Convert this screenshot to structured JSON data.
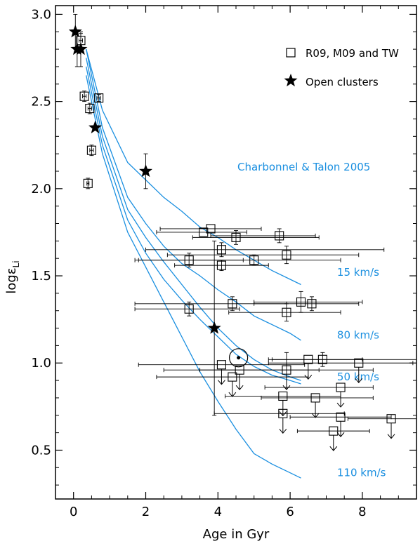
{
  "chart_data": {
    "type": "scatter",
    "xlabel": "Age in Gyr",
    "ylabel_main": "logε",
    "ylabel_sub": "Li",
    "xlim": [
      -0.5,
      9.5
    ],
    "ylim": [
      0.22,
      3.05
    ],
    "x_ticks": [
      0,
      2,
      4,
      6,
      8
    ],
    "x_tick_labels": [
      "0",
      "2",
      "4",
      "6",
      "8"
    ],
    "y_ticks": [
      0.5,
      1.0,
      1.5,
      2.0,
      2.5,
      3.0
    ],
    "y_tick_labels": [
      "0.5",
      "1.0",
      "1.5",
      "2.0",
      "2.5",
      "3.0"
    ],
    "legend": [
      {
        "marker": "square",
        "label": "R09, M09 and TW"
      },
      {
        "marker": "star",
        "label": "Open clusters"
      }
    ],
    "model_title": "Charbonnel & Talon 2005",
    "model_color": "#1a8fe0",
    "sun": {
      "x": 4.57,
      "y": 1.03
    },
    "open_clusters": [
      {
        "x": 0.05,
        "y": 2.9,
        "yerr": 0.1
      },
      {
        "x": 0.1,
        "y": 2.8,
        "yerr": 0.1
      },
      {
        "x": 0.2,
        "y": 2.8,
        "yerr": 0.1
      },
      {
        "x": 0.6,
        "y": 2.35
      },
      {
        "x": 2.0,
        "y": 2.1,
        "yerr": 0.1
      },
      {
        "x": 3.9,
        "y": 1.2,
        "yerr": 0.5
      }
    ],
    "stars": [
      {
        "x": 0.2,
        "y": 2.85,
        "xerr": 0.05,
        "yerr": 0.04
      },
      {
        "x": 0.3,
        "y": 2.53,
        "xerr": 0.05,
        "yerr": 0.03
      },
      {
        "x": 0.45,
        "y": 2.46,
        "xerr": 0.05,
        "yerr": 0.03
      },
      {
        "x": 0.7,
        "y": 2.52,
        "xerr": 0.05,
        "yerr": 0.02
      },
      {
        "x": 0.5,
        "y": 2.22,
        "xerr": 0.05,
        "yerr": 0.03
      },
      {
        "x": 0.4,
        "y": 2.03,
        "xerr": 0.03,
        "yerr": 0.03
      },
      {
        "x": 3.8,
        "y": 1.77,
        "xerr_lo": 1.4,
        "xerr_hi": 1.4
      },
      {
        "x": 3.6,
        "y": 1.75,
        "xerr_lo": 1.3,
        "xerr_hi": 1.2
      },
      {
        "x": 4.5,
        "y": 1.72,
        "xerr_lo": 1.2,
        "xerr_hi": 2.3,
        "yerr": 0.04
      },
      {
        "x": 5.7,
        "y": 1.73,
        "xerr_lo": 1.9,
        "xerr_hi": 1.0,
        "yerr": 0.04
      },
      {
        "x": 4.1,
        "y": 1.65,
        "xerr_lo": 2.1,
        "xerr_hi": 4.5,
        "yerr": 0.04
      },
      {
        "x": 3.2,
        "y": 1.59,
        "xerr_lo": 1.5,
        "xerr_hi": 1.5,
        "yerr": 0.04
      },
      {
        "x": 5.0,
        "y": 1.59,
        "xerr_lo": 3.2,
        "xerr_hi": 2.4,
        "yerr": 0.03
      },
      {
        "x": 5.9,
        "y": 1.62,
        "xerr_lo": 3.3,
        "xerr_hi": 2.0,
        "yerr": 0.05
      },
      {
        "x": 4.1,
        "y": 1.56,
        "xerr_lo": 1.3,
        "xerr_hi": 1.3,
        "yerr": 0.03
      },
      {
        "x": 3.2,
        "y": 1.31,
        "xerr_lo": 1.5,
        "xerr_hi": 1.4,
        "yerr": 0.04
      },
      {
        "x": 4.4,
        "y": 1.34,
        "xerr_lo": 2.7,
        "xerr_hi": 1.5,
        "yerr": 0.04
      },
      {
        "x": 6.3,
        "y": 1.35,
        "xerr_lo": 1.3,
        "xerr_hi": 1.7,
        "yerr": 0.06
      },
      {
        "x": 6.6,
        "y": 1.34,
        "xerr_lo": 1.6,
        "xerr_hi": 1.3,
        "yerr": 0.04
      },
      {
        "x": 5.9,
        "y": 1.29,
        "xerr_lo": 1.6,
        "xerr_hi": 1.5,
        "yerr": 0.05
      },
      {
        "x": 4.1,
        "y": 0.99,
        "xerr_lo": 2.3,
        "xerr_hi": 2.3,
        "upper_limit": true
      },
      {
        "x": 4.4,
        "y": 0.92,
        "xerr_lo": 2.1,
        "xerr_hi": 2.1,
        "upper_limit": true
      },
      {
        "x": 4.6,
        "y": 0.96,
        "xerr_lo": 2.1,
        "xerr_hi": 2.2,
        "upper_limit": true
      },
      {
        "x": 5.9,
        "y": 0.96,
        "xerr_lo": 2.4,
        "xerr_hi": 2.4,
        "yerr": 0.1,
        "upper_limit": true
      },
      {
        "x": 6.5,
        "y": 1.02,
        "xerr_lo": 1.0,
        "xerr_hi": 1.5,
        "upper_limit": true
      },
      {
        "x": 6.9,
        "y": 1.02,
        "xerr_lo": 1.5,
        "xerr_hi": 2.6,
        "yerr": 0.04
      },
      {
        "x": 7.9,
        "y": 1.0,
        "xerr_lo": 2.5,
        "xerr_hi": 1.5,
        "upper_limit": true
      },
      {
        "x": 7.4,
        "y": 0.86,
        "xerr_lo": 2.1,
        "xerr_hi": 0.9,
        "upper_limit": true
      },
      {
        "x": 5.8,
        "y": 0.81,
        "xerr_lo": 1.6,
        "xerr_hi": 1.6,
        "upper_limit": true
      },
      {
        "x": 6.7,
        "y": 0.8,
        "xerr_lo": 1.5,
        "xerr_hi": 1.6,
        "upper_limit": true
      },
      {
        "x": 5.8,
        "y": 0.71,
        "xerr_lo": 1.9,
        "xerr_hi": 1.7,
        "upper_limit": true
      },
      {
        "x": 7.4,
        "y": 0.69,
        "xerr_lo": 1.4,
        "xerr_hi": 1.4,
        "upper_limit": true
      },
      {
        "x": 7.2,
        "y": 0.61,
        "xerr_lo": 1.0,
        "xerr_hi": 1.0,
        "upper_limit": true
      },
      {
        "x": 8.8,
        "y": 0.68,
        "xerr_lo": 1.2,
        "xerr_hi": 0.7,
        "upper_limit": true
      }
    ],
    "models": [
      {
        "label": "15 km/s",
        "label_pos": [
          7.3,
          1.5
        ],
        "points": [
          [
            0.35,
            2.8
          ],
          [
            0.8,
            2.45
          ],
          [
            1.5,
            2.15
          ],
          [
            2.0,
            2.05
          ],
          [
            2.5,
            1.95
          ],
          [
            3.0,
            1.87
          ],
          [
            3.5,
            1.78
          ],
          [
            4.0,
            1.72
          ],
          [
            4.5,
            1.65
          ],
          [
            5.0,
            1.59
          ],
          [
            5.5,
            1.53
          ],
          [
            6.0,
            1.48
          ],
          [
            6.3,
            1.45
          ]
        ]
      },
      {
        "label": "80 km/s",
        "label_pos": [
          7.3,
          1.14
        ],
        "points": [
          [
            0.35,
            2.8
          ],
          [
            0.8,
            2.35
          ],
          [
            1.5,
            1.95
          ],
          [
            2.0,
            1.8
          ],
          [
            2.5,
            1.67
          ],
          [
            3.0,
            1.57
          ],
          [
            3.5,
            1.5
          ],
          [
            4.0,
            1.42
          ],
          [
            4.5,
            1.35
          ],
          [
            5.0,
            1.27
          ],
          [
            5.5,
            1.22
          ],
          [
            6.0,
            1.17
          ],
          [
            6.3,
            1.13
          ]
        ]
      },
      {
        "label": "50 km/s",
        "label_pos": [
          7.3,
          0.9
        ],
        "points": [
          [
            0.35,
            2.75
          ],
          [
            0.8,
            2.3
          ],
          [
            1.5,
            1.88
          ],
          [
            2.0,
            1.72
          ],
          [
            2.5,
            1.58
          ],
          [
            3.0,
            1.45
          ],
          [
            3.5,
            1.32
          ],
          [
            4.0,
            1.2
          ],
          [
            4.5,
            1.1
          ],
          [
            5.0,
            1.02
          ],
          [
            5.5,
            0.96
          ],
          [
            6.0,
            0.92
          ],
          [
            6.3,
            0.9
          ]
        ]
      },
      {
        "label": "110 km/s",
        "label_pos": [
          7.3,
          0.35
        ],
        "points": [
          [
            0.35,
            2.65
          ],
          [
            0.8,
            2.2
          ],
          [
            1.5,
            1.75
          ],
          [
            2.0,
            1.55
          ],
          [
            2.5,
            1.35
          ],
          [
            3.0,
            1.15
          ],
          [
            3.5,
            0.95
          ],
          [
            4.0,
            0.78
          ],
          [
            4.5,
            0.62
          ],
          [
            5.0,
            0.48
          ],
          [
            5.5,
            0.42
          ],
          [
            6.0,
            0.37
          ],
          [
            6.3,
            0.34
          ]
        ]
      },
      {
        "label": "",
        "label_pos": null,
        "points": [
          [
            0.35,
            2.7
          ],
          [
            0.8,
            2.25
          ],
          [
            1.5,
            1.82
          ],
          [
            2.0,
            1.63
          ],
          [
            2.5,
            1.48
          ],
          [
            3.0,
            1.36
          ],
          [
            3.5,
            1.25
          ],
          [
            4.0,
            1.15
          ],
          [
            4.5,
            1.05
          ],
          [
            5.0,
            0.98
          ],
          [
            5.5,
            0.93
          ],
          [
            6.0,
            0.9
          ],
          [
            6.3,
            0.88
          ]
        ]
      }
    ]
  }
}
